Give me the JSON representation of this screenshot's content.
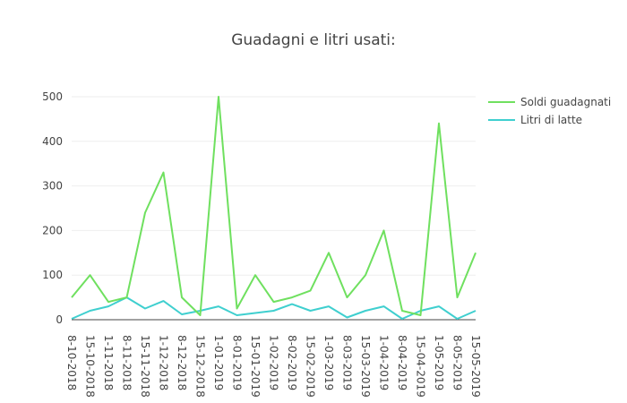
{
  "chart_data": {
    "type": "line",
    "title": "Guadagni e litri usati:",
    "xlabel": "",
    "ylabel": "",
    "ylim": [
      0,
      520
    ],
    "yticks": [
      0,
      100,
      200,
      300,
      400,
      500
    ],
    "grid": true,
    "legend_position": "top-right",
    "categories": [
      "8-10-2018",
      "15-10-2018",
      "1-11-2018",
      "8-11-2018",
      "15-11-2018",
      "1-12-2018",
      "8-12-2018",
      "15-12-2018",
      "1-01-2019",
      "8-01-2019",
      "15-01-2019",
      "1-02-2019",
      "8-02-2019",
      "15-02-2019",
      "1-03-2019",
      "8-03-2019",
      "15-03-2019",
      "1-04-2019",
      "8-04-2019",
      "15-04-2019",
      "1-05-2019",
      "8-05-2019",
      "15-05-2019"
    ],
    "series": [
      {
        "name": "Soldi guadagnati",
        "color": "#6fe05f",
        "values": [
          50,
          100,
          40,
          50,
          240,
          330,
          50,
          10,
          500,
          25,
          100,
          40,
          50,
          65,
          150,
          50,
          100,
          200,
          20,
          10,
          440,
          50,
          150
        ]
      },
      {
        "name": "Litri di latte",
        "color": "#3fcfcf",
        "values": [
          2,
          20,
          30,
          50,
          25,
          42,
          12,
          20,
          30,
          10,
          15,
          20,
          35,
          20,
          30,
          5,
          20,
          30,
          2,
          20,
          30,
          2,
          20
        ]
      }
    ]
  }
}
